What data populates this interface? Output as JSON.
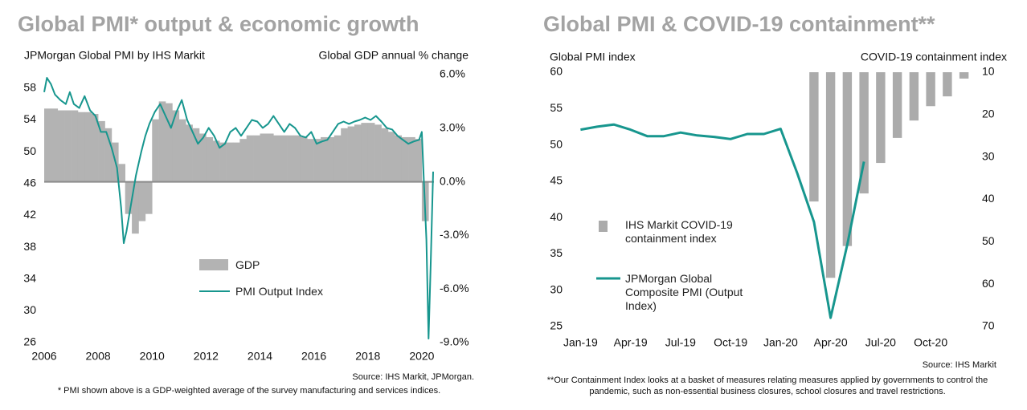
{
  "chart_data": [
    {
      "type": "combo",
      "title": "Global PMI* output & economic growth",
      "ylabel": "JPMorgan Global PMI by IHS Markit",
      "y2label": "Global GDP annual % change",
      "source": "Source: IHS Markit, JPMorgan.",
      "footnote": "* PMI shown above is a GDP-weighted average of the survey manufacturing and services indices.",
      "xlim": [
        2006,
        2020.45
      ],
      "xticks": [
        2006,
        2008,
        2010,
        2012,
        2014,
        2016,
        2018,
        2020
      ],
      "ylim": [
        26,
        59.7
      ],
      "yticks": [
        26,
        30,
        34,
        38,
        42,
        46,
        50,
        54,
        58
      ],
      "y2lim": [
        -9,
        6
      ],
      "y2ticks": [
        {
          "value": -9,
          "label": "-9.0%"
        },
        {
          "value": -6,
          "label": "-6.0%"
        },
        {
          "value": -3,
          "label": "-3.0%"
        },
        {
          "value": 0,
          "label": "0.0%"
        },
        {
          "value": 3,
          "label": "3.0%"
        },
        {
          "value": 6,
          "label": "6.0%"
        }
      ],
      "series": [
        {
          "name": "GDP",
          "type": "bar",
          "axis": "y2",
          "color": "#b3b3b3",
          "x": [
            2006,
            2006.25,
            2006.5,
            2006.75,
            2007,
            2007.25,
            2007.5,
            2007.75,
            2008,
            2008.25,
            2008.5,
            2008.75,
            2009,
            2009.25,
            2009.5,
            2009.75,
            2010,
            2010.25,
            2010.5,
            2010.75,
            2011,
            2011.25,
            2011.5,
            2011.75,
            2012,
            2012.25,
            2012.5,
            2012.75,
            2013,
            2013.25,
            2013.5,
            2013.75,
            2014,
            2014.25,
            2014.5,
            2014.75,
            2015,
            2015.25,
            2015.5,
            2015.75,
            2016,
            2016.25,
            2016.5,
            2016.75,
            2017,
            2017.25,
            2017.5,
            2017.75,
            2018,
            2018.25,
            2018.5,
            2018.75,
            2019,
            2019.25,
            2019.5,
            2019.75,
            2020
          ],
          "values": [
            4.1,
            4.1,
            4.0,
            4.0,
            4.0,
            3.9,
            3.9,
            3.8,
            3.4,
            3.0,
            2.2,
            1.0,
            -1.8,
            -2.9,
            -2.2,
            -1.8,
            3.5,
            4.5,
            4.4,
            4.0,
            3.5,
            3.2,
            3.0,
            2.7,
            2.5,
            2.3,
            2.2,
            2.2,
            2.2,
            2.4,
            2.6,
            2.6,
            2.7,
            2.7,
            2.6,
            2.6,
            2.6,
            2.6,
            2.5,
            2.4,
            2.4,
            2.5,
            2.5,
            2.6,
            3.0,
            3.1,
            3.2,
            3.3,
            3.3,
            3.2,
            3.0,
            2.8,
            2.6,
            2.5,
            2.5,
            2.4,
            -2.2
          ]
        },
        {
          "name": "PMI Output Index",
          "type": "line",
          "axis": "y",
          "color": "#17968e",
          "x": [
            2006.0,
            2006.1,
            2006.25,
            2006.4,
            2006.6,
            2006.8,
            2006.95,
            2007.1,
            2007.3,
            2007.5,
            2007.7,
            2007.9,
            2008.1,
            2008.3,
            2008.5,
            2008.7,
            2008.85,
            2008.95,
            2009.05,
            2009.2,
            2009.4,
            2009.6,
            2009.75,
            2009.9,
            2010.1,
            2010.3,
            2010.5,
            2010.7,
            2010.9,
            2011.1,
            2011.3,
            2011.5,
            2011.7,
            2011.9,
            2012.1,
            2012.3,
            2012.5,
            2012.7,
            2012.9,
            2013.1,
            2013.3,
            2013.5,
            2013.7,
            2013.9,
            2014.1,
            2014.3,
            2014.5,
            2014.7,
            2014.9,
            2015.1,
            2015.3,
            2015.5,
            2015.7,
            2015.9,
            2016.1,
            2016.3,
            2016.5,
            2016.7,
            2016.9,
            2017.1,
            2017.3,
            2017.5,
            2017.7,
            2017.9,
            2018.1,
            2018.3,
            2018.5,
            2018.7,
            2018.9,
            2019.1,
            2019.3,
            2019.5,
            2019.7,
            2019.9,
            2020.0,
            2020.08,
            2020.17,
            2020.25,
            2020.33,
            2020.42
          ],
          "values": [
            57.5,
            59.3,
            58.5,
            57.2,
            56.5,
            56.0,
            57.5,
            56.0,
            55.5,
            57.0,
            55.2,
            54.5,
            52.5,
            52.5,
            50.5,
            48.0,
            43.0,
            38.5,
            40.0,
            43.0,
            47.0,
            50.0,
            52.0,
            53.5,
            55.0,
            56.0,
            54.5,
            53.0,
            55.0,
            56.5,
            54.0,
            52.5,
            51.0,
            51.8,
            53.0,
            52.0,
            50.5,
            51.0,
            52.5,
            53.0,
            52.0,
            53.0,
            54.0,
            53.8,
            53.0,
            53.5,
            54.5,
            53.5,
            52.5,
            53.5,
            53.0,
            52.0,
            51.8,
            52.5,
            51.0,
            51.3,
            51.5,
            52.5,
            53.5,
            53.8,
            53.5,
            53.8,
            54.0,
            54.3,
            54.0,
            54.5,
            53.8,
            53.0,
            52.8,
            52.0,
            51.5,
            51.0,
            51.3,
            51.5,
            52.5,
            46.0,
            39.0,
            26.5,
            36.0,
            47.5
          ]
        }
      ]
    },
    {
      "type": "combo",
      "title": "Global PMI & COVID-19 containment**",
      "ylabel": "Global PMI index",
      "y2label": "COVID-19 containment index",
      "source": "Source: IHS Markit",
      "footnote": "**Our Containment Index looks at a basket of measures relating measures applied by governments to control the pandemic, such as non-essential business closures, school closures and travel restrictions.",
      "categories": [
        "Jan-19",
        null,
        null,
        "Apr-19",
        null,
        null,
        "Jul-19",
        null,
        null,
        "Oct-19",
        null,
        null,
        "Jan-20",
        null,
        null,
        "Apr-20",
        null,
        null,
        "Jul-20",
        null,
        null,
        "Oct-20",
        null,
        null
      ],
      "ylim": [
        25,
        60
      ],
      "yticks": [
        25,
        30,
        35,
        40,
        45,
        50,
        55,
        60
      ],
      "y2lim": [
        10,
        70
      ],
      "y2_reversed": true,
      "y2ticks": [
        10,
        20,
        30,
        40,
        50,
        60,
        70
      ],
      "series": [
        {
          "name": "IHS Markit COVID-19 containment index",
          "type": "bar",
          "axis": "y2",
          "color": "#ababab",
          "values": [
            null,
            null,
            null,
            null,
            null,
            null,
            null,
            null,
            null,
            null,
            null,
            null,
            null,
            null,
            40.5,
            58.5,
            51,
            38.6,
            31.4,
            25.5,
            21.4,
            18,
            15.7,
            11.5
          ]
        },
        {
          "name": "JPMorgan Global Composite PMI (Output Index)",
          "type": "line",
          "axis": "y",
          "color": "#17968e",
          "values": [
            52.1,
            52.5,
            52.8,
            52.1,
            51.2,
            51.2,
            51.7,
            51.3,
            51.1,
            50.8,
            51.5,
            51.5,
            52.2,
            46.1,
            39.4,
            26.2,
            36.3,
            47.7,
            null,
            null,
            null,
            null,
            null,
            null
          ]
        }
      ]
    }
  ]
}
